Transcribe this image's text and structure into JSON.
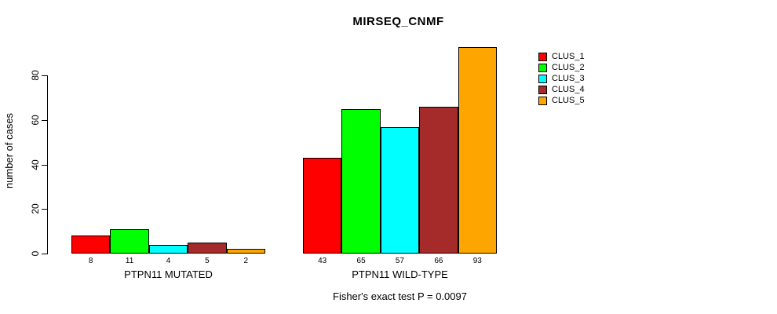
{
  "chart_data": {
    "type": "bar",
    "title": "MIRSEQ_CNMF",
    "xlabel": "",
    "ylabel": "number of cases",
    "categories": [
      "PTPN11 MUTATED",
      "PTPN11 WILD-TYPE"
    ],
    "series": [
      {
        "name": "CLUS_1",
        "color": "#ff0000",
        "values": [
          8,
          43
        ]
      },
      {
        "name": "CLUS_2",
        "color": "#00ff00",
        "values": [
          11,
          65
        ]
      },
      {
        "name": "CLUS_3",
        "color": "#00ffff",
        "values": [
          4,
          57
        ]
      },
      {
        "name": "CLUS_4",
        "color": "#a52a2a",
        "values": [
          5,
          66
        ]
      },
      {
        "name": "CLUS_5",
        "color": "#ffa500",
        "values": [
          2,
          93
        ]
      }
    ],
    "bar_value_labels": [
      [
        8,
        11,
        4,
        5,
        2
      ],
      [
        43,
        65,
        57,
        66,
        93
      ]
    ],
    "yticks": [
      0,
      20,
      40,
      60,
      80
    ],
    "ylim": [
      0,
      95
    ],
    "grid": false,
    "legend_position": "right-outside",
    "legend_entries": [
      "CLUS_1",
      "CLUS_2",
      "CLUS_3",
      "CLUS_4",
      "CLUS_5"
    ],
    "annotation": "Fisher's exact test P = 0.0097",
    "bar_border_color": "#000000",
    "background_color": "#ffffff"
  }
}
